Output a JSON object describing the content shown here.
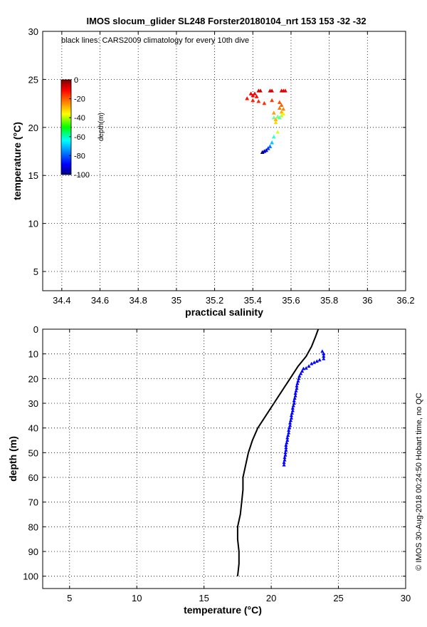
{
  "chart_data": [
    {
      "type": "scatter",
      "title": "IMOS slocum_glider SL248 Forster20180104_nrt 153  153  -32  -32",
      "annotation": "black lines: CARS2009 climatology for every 10th dive",
      "xlabel": "practical salinity",
      "ylabel": "temperature (°C)",
      "xlim": [
        34.3,
        36.2
      ],
      "ylim": [
        3,
        30
      ],
      "xticks": [
        "34.4",
        "34.6",
        "34.8",
        "35",
        "35.2",
        "35.4",
        "35.6",
        "35.8",
        "36",
        "36.2"
      ],
      "yticks": [
        "5",
        "10",
        "15",
        "20",
        "25",
        "30"
      ],
      "grid": true,
      "colorbar": {
        "label": "depth(m)",
        "ticks": [
          "0",
          "-20",
          "-40",
          "-60",
          "-80",
          "-100"
        ],
        "range": [
          -100,
          0
        ]
      },
      "series": [
        {
          "color_by": "depth",
          "points": [
            {
              "x": 35.43,
              "y": 23.8,
              "depth": -8
            },
            {
              "x": 35.44,
              "y": 23.8,
              "depth": -8
            },
            {
              "x": 35.49,
              "y": 23.8,
              "depth": -9
            },
            {
              "x": 35.5,
              "y": 23.8,
              "depth": -9
            },
            {
              "x": 35.55,
              "y": 23.8,
              "depth": -10
            },
            {
              "x": 35.56,
              "y": 23.8,
              "depth": -10
            },
            {
              "x": 35.57,
              "y": 23.8,
              "depth": -10
            },
            {
              "x": 35.39,
              "y": 23.5,
              "depth": -11
            },
            {
              "x": 35.4,
              "y": 23.3,
              "depth": -12
            },
            {
              "x": 35.41,
              "y": 23.5,
              "depth": -12
            },
            {
              "x": 35.42,
              "y": 23.2,
              "depth": -13
            },
            {
              "x": 35.37,
              "y": 23.0,
              "depth": -14
            },
            {
              "x": 35.4,
              "y": 22.8,
              "depth": -15
            },
            {
              "x": 35.43,
              "y": 22.7,
              "depth": -16
            },
            {
              "x": 35.46,
              "y": 22.5,
              "depth": -17
            },
            {
              "x": 35.5,
              "y": 22.8,
              "depth": -18
            },
            {
              "x": 35.54,
              "y": 22.6,
              "depth": -20
            },
            {
              "x": 35.55,
              "y": 22.3,
              "depth": -22
            },
            {
              "x": 35.54,
              "y": 22.0,
              "depth": -24
            },
            {
              "x": 35.56,
              "y": 21.9,
              "depth": -26
            },
            {
              "x": 35.55,
              "y": 21.6,
              "depth": -30
            },
            {
              "x": 35.56,
              "y": 21.4,
              "depth": -36
            },
            {
              "x": 35.55,
              "y": 21.2,
              "depth": -44
            },
            {
              "x": 35.53,
              "y": 21.1,
              "depth": -50
            },
            {
              "x": 35.51,
              "y": 21.0,
              "depth": -52
            },
            {
              "x": 35.54,
              "y": 21.0,
              "depth": -54
            },
            {
              "x": 35.52,
              "y": 20.8,
              "depth": -30
            },
            {
              "x": 35.51,
              "y": 21.5,
              "depth": -28
            },
            {
              "x": 35.52,
              "y": 20.5,
              "depth": -34
            },
            {
              "x": 35.53,
              "y": 19.5,
              "depth": -42
            },
            {
              "x": 35.51,
              "y": 19.0,
              "depth": -58
            },
            {
              "x": 35.5,
              "y": 18.4,
              "depth": -68
            },
            {
              "x": 35.49,
              "y": 18.0,
              "depth": -76
            },
            {
              "x": 35.48,
              "y": 17.8,
              "depth": -82
            },
            {
              "x": 35.47,
              "y": 17.6,
              "depth": -88
            },
            {
              "x": 35.46,
              "y": 17.5,
              "depth": -94
            },
            {
              "x": 35.45,
              "y": 17.4,
              "depth": -100
            }
          ]
        }
      ]
    },
    {
      "type": "line",
      "xlabel": "temperature (°C)",
      "ylabel": "depth (m)",
      "xlim": [
        3,
        30
      ],
      "ylim": [
        105,
        0
      ],
      "xticks": [
        "5",
        "10",
        "15",
        "20",
        "25",
        "30"
      ],
      "yticks": [
        "0",
        "10",
        "20",
        "30",
        "40",
        "50",
        "60",
        "70",
        "80",
        "90",
        "100"
      ],
      "grid": true,
      "series": [
        {
          "style": "scatter",
          "color": "#0000ff",
          "points": [
            {
              "x": 23.8,
              "y": 9
            },
            {
              "x": 23.9,
              "y": 10
            },
            {
              "x": 23.9,
              "y": 11
            },
            {
              "x": 23.9,
              "y": 12
            },
            {
              "x": 23.6,
              "y": 12.5
            },
            {
              "x": 23.4,
              "y": 13
            },
            {
              "x": 23.2,
              "y": 13.5
            },
            {
              "x": 23.0,
              "y": 14
            },
            {
              "x": 22.8,
              "y": 15
            },
            {
              "x": 22.6,
              "y": 15.8
            },
            {
              "x": 22.4,
              "y": 16
            },
            {
              "x": 22.3,
              "y": 17
            },
            {
              "x": 22.2,
              "y": 18
            },
            {
              "x": 22.1,
              "y": 19
            },
            {
              "x": 22.05,
              "y": 20
            },
            {
              "x": 22.0,
              "y": 21
            },
            {
              "x": 21.95,
              "y": 22
            },
            {
              "x": 21.9,
              "y": 23
            },
            {
              "x": 21.9,
              "y": 24
            },
            {
              "x": 21.85,
              "y": 25
            },
            {
              "x": 21.8,
              "y": 26
            },
            {
              "x": 21.8,
              "y": 27
            },
            {
              "x": 21.75,
              "y": 28
            },
            {
              "x": 21.7,
              "y": 29
            },
            {
              "x": 21.7,
              "y": 30
            },
            {
              "x": 21.65,
              "y": 31
            },
            {
              "x": 21.6,
              "y": 32
            },
            {
              "x": 21.6,
              "y": 33
            },
            {
              "x": 21.55,
              "y": 34
            },
            {
              "x": 21.5,
              "y": 35
            },
            {
              "x": 21.5,
              "y": 36
            },
            {
              "x": 21.45,
              "y": 37
            },
            {
              "x": 21.4,
              "y": 38
            },
            {
              "x": 21.4,
              "y": 39
            },
            {
              "x": 21.35,
              "y": 40
            },
            {
              "x": 21.3,
              "y": 41
            },
            {
              "x": 21.3,
              "y": 42
            },
            {
              "x": 21.25,
              "y": 43
            },
            {
              "x": 21.2,
              "y": 44
            },
            {
              "x": 21.2,
              "y": 45
            },
            {
              "x": 21.15,
              "y": 46
            },
            {
              "x": 21.1,
              "y": 47
            },
            {
              "x": 21.1,
              "y": 48
            },
            {
              "x": 21.1,
              "y": 49
            },
            {
              "x": 21.05,
              "y": 50
            },
            {
              "x": 21.05,
              "y": 51
            },
            {
              "x": 21.0,
              "y": 52
            },
            {
              "x": 21.0,
              "y": 53
            },
            {
              "x": 20.95,
              "y": 54
            },
            {
              "x": 20.95,
              "y": 55
            }
          ]
        },
        {
          "style": "line",
          "color": "#000000",
          "points": [
            {
              "x": 23.5,
              "y": 0
            },
            {
              "x": 23.3,
              "y": 3
            },
            {
              "x": 23.0,
              "y": 7
            },
            {
              "x": 22.6,
              "y": 11
            },
            {
              "x": 22.0,
              "y": 15
            },
            {
              "x": 21.4,
              "y": 20
            },
            {
              "x": 20.8,
              "y": 25
            },
            {
              "x": 20.2,
              "y": 30
            },
            {
              "x": 19.6,
              "y": 35
            },
            {
              "x": 19.0,
              "y": 40
            },
            {
              "x": 18.6,
              "y": 45
            },
            {
              "x": 18.3,
              "y": 50
            },
            {
              "x": 18.1,
              "y": 55
            },
            {
              "x": 17.9,
              "y": 60
            },
            {
              "x": 17.9,
              "y": 65
            },
            {
              "x": 17.8,
              "y": 70
            },
            {
              "x": 17.7,
              "y": 75
            },
            {
              "x": 17.5,
              "y": 80
            },
            {
              "x": 17.5,
              "y": 85
            },
            {
              "x": 17.6,
              "y": 90
            },
            {
              "x": 17.6,
              "y": 95
            },
            {
              "x": 17.5,
              "y": 100
            }
          ]
        }
      ]
    }
  ],
  "footer": {
    "side_text": "© IMOS 30-Aug-2018 00:24:50 Hobart time, no QC"
  }
}
